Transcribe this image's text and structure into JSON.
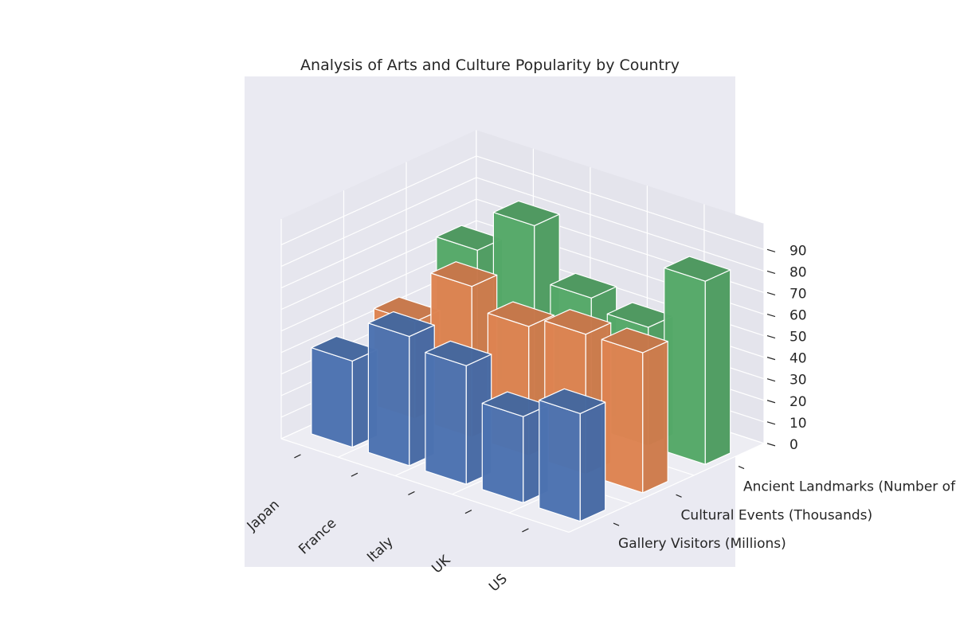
{
  "chart_data": {
    "type": "bar3d",
    "title": "Analysis of Arts and Culture Popularity by Country",
    "categories": [
      "Japan",
      "France",
      "Italy",
      "UK",
      "US"
    ],
    "series": [
      {
        "name": "Gallery Visitors (Millions)",
        "values": [
          40,
          60,
          55,
          40,
          50
        ]
      },
      {
        "name": "Cultural Events (Thousands)",
        "values": [
          45,
          70,
          60,
          65,
          65
        ]
      },
      {
        "name": "Ancient Landmarks (Number of Visits - M",
        "values": [
          65,
          85,
          60,
          55,
          85
        ]
      }
    ],
    "zlim": [
      0,
      90
    ],
    "zticks": [
      0,
      10,
      20,
      30,
      40,
      50,
      60,
      70,
      80,
      90
    ],
    "colors": [
      "#4c72b0",
      "#dd8452",
      "#55a868"
    ],
    "grid": true,
    "background": "#eaeaf2"
  }
}
